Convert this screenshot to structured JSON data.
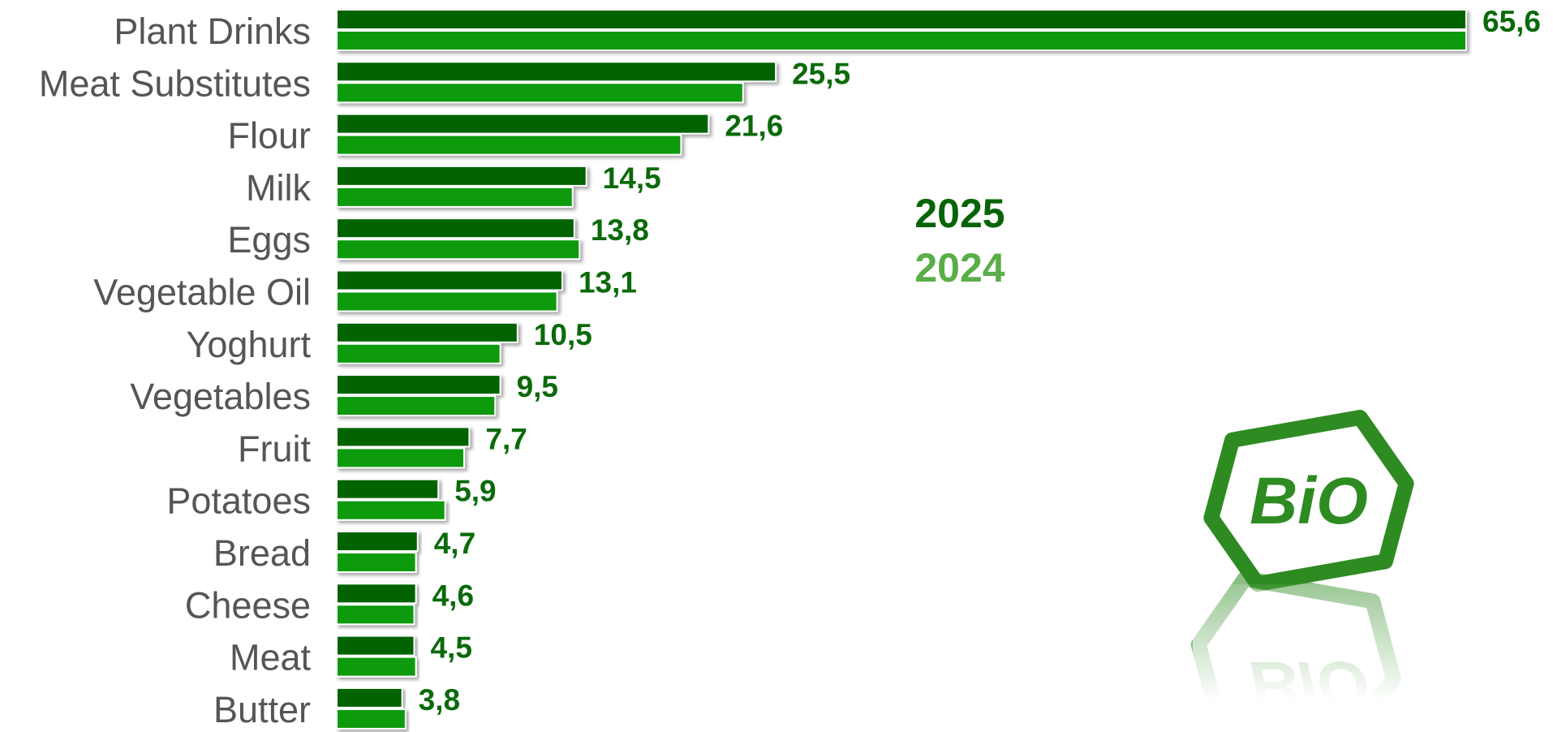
{
  "chart_data": {
    "type": "bar",
    "orientation": "horizontal",
    "categories": [
      "Plant Drinks",
      "Meat Substitutes",
      "Flour",
      "Milk",
      "Eggs",
      "Vegetable Oil",
      "Yoghurt",
      "Vegetables",
      "Fruit",
      "Potatoes",
      "Bread",
      "Cheese",
      "Meat",
      "Butter"
    ],
    "series": [
      {
        "name": "2025",
        "color": "#066406",
        "values": [
          65.6,
          25.5,
          21.6,
          14.5,
          13.8,
          13.1,
          10.5,
          9.5,
          7.7,
          5.9,
          4.7,
          4.6,
          4.5,
          3.8
        ],
        "value_labels": [
          "65,6",
          "25,5",
          "21,6",
          "14,5",
          "13,8",
          "13,1",
          "10,5",
          "9,5",
          "7,7",
          "5,9",
          "4,7",
          "4,6",
          "4,5",
          "3,8"
        ]
      },
      {
        "name": "2024",
        "color": "#0b9a0b",
        "values": [
          65.6,
          23.6,
          20.0,
          13.7,
          14.1,
          12.8,
          9.5,
          9.2,
          7.4,
          6.3,
          4.6,
          4.5,
          4.6,
          4.0
        ]
      }
    ],
    "xlim": [
      0,
      65.6
    ],
    "grid": false,
    "legend": {
      "placement": "center",
      "entries": [
        {
          "label": "2025",
          "color": "#066406"
        },
        {
          "label": "2024",
          "color": "#5aae47"
        }
      ]
    }
  },
  "logo": {
    "text": "BiO",
    "color": "#2e8b22"
  }
}
